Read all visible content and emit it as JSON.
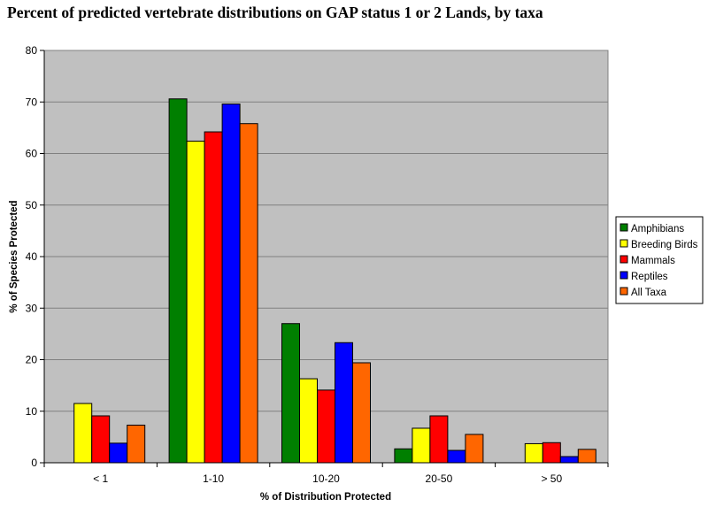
{
  "chart_data": {
    "type": "bar",
    "title": "Percent of predicted vertebrate distributions on GAP status 1 or 2 Lands, by taxa",
    "xlabel": "% of Distribution Protected",
    "ylabel": "% of Species Protected",
    "categories": [
      "< 1",
      "1-10",
      "10-20",
      "20-50",
      "> 50"
    ],
    "ylim": [
      0,
      80
    ],
    "yticks": [
      0,
      10,
      20,
      30,
      40,
      50,
      60,
      70,
      80
    ],
    "grid": true,
    "legend_position": "right",
    "plot_background": "#c0c0c0",
    "series": [
      {
        "name": "Amphibians",
        "color": "#007f00",
        "values": [
          0,
          70.6,
          27.0,
          2.7,
          0
        ]
      },
      {
        "name": "Breeding Birds",
        "color": "#ffff00",
        "values": [
          11.5,
          62.4,
          16.3,
          6.7,
          3.7
        ]
      },
      {
        "name": "Mammals",
        "color": "#ff0000",
        "values": [
          9.1,
          64.2,
          14.1,
          9.1,
          3.9
        ]
      },
      {
        "name": "Reptiles",
        "color": "#0000ff",
        "values": [
          3.8,
          69.6,
          23.3,
          2.4,
          1.2
        ]
      },
      {
        "name": "All Taxa",
        "color": "#ff6600",
        "values": [
          7.3,
          65.8,
          19.4,
          5.5,
          2.6
        ]
      }
    ]
  }
}
